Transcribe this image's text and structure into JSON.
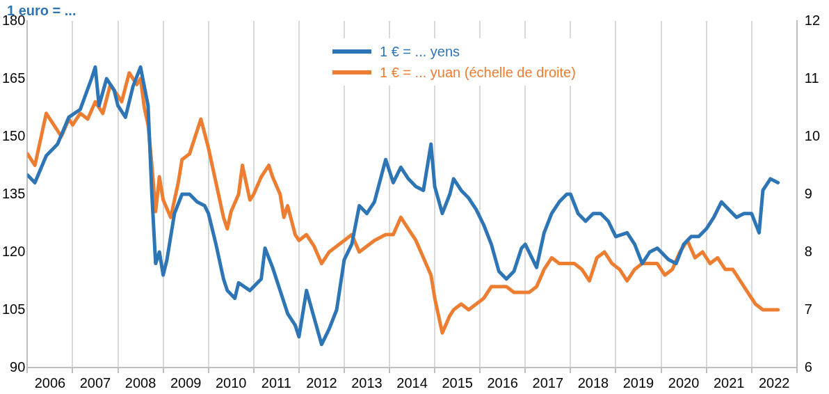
{
  "chart_data": {
    "type": "line",
    "title": "1 euro = ...",
    "xlim": [
      "2006-01-01",
      "2023-01-01"
    ],
    "xticks": [
      {
        "value": "2006-01-01",
        "label": null
      },
      {
        "value": "2006-07-01",
        "label": "2006"
      },
      {
        "value": "2007-01-01",
        "label": null
      },
      {
        "value": "2007-07-01",
        "label": "2007"
      },
      {
        "value": "2008-01-01",
        "label": null
      },
      {
        "value": "2008-07-01",
        "label": "2008"
      },
      {
        "value": "2009-01-01",
        "label": null
      },
      {
        "value": "2009-07-01",
        "label": "2009"
      },
      {
        "value": "2010-01-01",
        "label": null
      },
      {
        "value": "2010-07-01",
        "label": "2010"
      },
      {
        "value": "2011-01-01",
        "label": null
      },
      {
        "value": "2011-07-01",
        "label": "2011"
      },
      {
        "value": "2012-01-01",
        "label": null
      },
      {
        "value": "2012-07-01",
        "label": "2012"
      },
      {
        "value": "2013-01-01",
        "label": null
      },
      {
        "value": "2013-07-01",
        "label": "2013"
      },
      {
        "value": "2014-01-01",
        "label": null
      },
      {
        "value": "2014-07-01",
        "label": "2014"
      },
      {
        "value": "2015-01-01",
        "label": null
      },
      {
        "value": "2015-07-01",
        "label": "2015"
      },
      {
        "value": "2016-01-01",
        "label": null
      },
      {
        "value": "2016-07-01",
        "label": "2016"
      },
      {
        "value": "2017-01-01",
        "label": null
      },
      {
        "value": "2017-07-01",
        "label": "2017"
      },
      {
        "value": "2018-01-01",
        "label": null
      },
      {
        "value": "2018-07-01",
        "label": "2018"
      },
      {
        "value": "2019-01-01",
        "label": null
      },
      {
        "value": "2019-07-01",
        "label": "2019"
      },
      {
        "value": "2020-01-01",
        "label": null
      },
      {
        "value": "2020-07-01",
        "label": "2020"
      },
      {
        "value": "2021-01-01",
        "label": null
      },
      {
        "value": "2021-07-01",
        "label": "2021"
      },
      {
        "value": "2022-01-01",
        "label": null
      },
      {
        "value": "2022-07-01",
        "label": "2022"
      },
      {
        "value": "2023-01-01",
        "label": null
      }
    ],
    "ylim": [
      90,
      180
    ],
    "yticks": [
      90,
      105,
      120,
      135,
      150,
      165,
      180
    ],
    "y2lim": [
      6,
      12
    ],
    "y2ticks": [
      6,
      7,
      8,
      9,
      10,
      11,
      12
    ],
    "grid": "x",
    "legend": "top",
    "marker": "none",
    "line_style": "solid",
    "series": [
      {
        "name": "1 € = ... yens",
        "color": "#2e75b6",
        "x": [
          "2006-01",
          "2006-03",
          "2006-06",
          "2006-09",
          "2006-12",
          "2007-03",
          "2007-06",
          "2007-07",
          "2007-08",
          "2007-10",
          "2007-12",
          "2008-01",
          "2008-03",
          "2008-05",
          "2008-07",
          "2008-09",
          "2008-10",
          "2008-11",
          "2008-12",
          "2009-01",
          "2009-02",
          "2009-04",
          "2009-06",
          "2009-08",
          "2009-10",
          "2009-12",
          "2010-01",
          "2010-03",
          "2010-05",
          "2010-06",
          "2010-08",
          "2010-09",
          "2010-12",
          "2011-03",
          "2011-04",
          "2011-06",
          "2011-08",
          "2011-10",
          "2011-12",
          "2012-01",
          "2012-03",
          "2012-05",
          "2012-07",
          "2012-09",
          "2012-11",
          "2013-01",
          "2013-03",
          "2013-05",
          "2013-07",
          "2013-09",
          "2013-12",
          "2014-02",
          "2014-04",
          "2014-06",
          "2014-08",
          "2014-10",
          "2014-12",
          "2015-01",
          "2015-03",
          "2015-05",
          "2015-06",
          "2015-08",
          "2015-10",
          "2015-12",
          "2016-02",
          "2016-04",
          "2016-06",
          "2016-08",
          "2016-10",
          "2016-12",
          "2017-01",
          "2017-04",
          "2017-06",
          "2017-08",
          "2017-10",
          "2017-12",
          "2018-01",
          "2018-03",
          "2018-05",
          "2018-07",
          "2018-09",
          "2018-11",
          "2018-12",
          "2019-01",
          "2019-04",
          "2019-06",
          "2019-08",
          "2019-10",
          "2019-12",
          "2020-03",
          "2020-05",
          "2020-07",
          "2020-09",
          "2020-11",
          "2021-01",
          "2021-03",
          "2021-05",
          "2021-07",
          "2021-09",
          "2021-11",
          "2022-01",
          "2022-03",
          "2022-04",
          "2022-06",
          "2022-08"
        ],
        "values": [
          140,
          138,
          145,
          148,
          155,
          157,
          165,
          168,
          158,
          165,
          162,
          158,
          155,
          163,
          168,
          158,
          135,
          117,
          120,
          114,
          118,
          130,
          135,
          135,
          133,
          132,
          130,
          122,
          113,
          110,
          108,
          112,
          110,
          113,
          121,
          116,
          110,
          104,
          101,
          98,
          110,
          103,
          96,
          100,
          105,
          118,
          122,
          132,
          130,
          133,
          144,
          138,
          142,
          139,
          137,
          136,
          148,
          137,
          130,
          135,
          139,
          136,
          134,
          131,
          127,
          122,
          115,
          113,
          115,
          121,
          122,
          116,
          125,
          130,
          133,
          135,
          135,
          130,
          128,
          130,
          130,
          128,
          126,
          124,
          125,
          122,
          117,
          120,
          121,
          118,
          117,
          122,
          124,
          124,
          126,
          129,
          133,
          131,
          129,
          130,
          130,
          125,
          136,
          139,
          138
        ]
      },
      {
        "name": "1 € = ... yuan (échelle de droite)",
        "color": "#ed7d31",
        "axis": "y2",
        "x": [
          "2006-01",
          "2006-03",
          "2006-05",
          "2006-06",
          "2006-08",
          "2006-10",
          "2006-12",
          "2007-01",
          "2007-03",
          "2007-05",
          "2007-07",
          "2007-09",
          "2007-11",
          "2007-12",
          "2008-02",
          "2008-04",
          "2008-06",
          "2008-07",
          "2008-08",
          "2008-09",
          "2008-10",
          "2008-11",
          "2008-12",
          "2009-01",
          "2009-03",
          "2009-05",
          "2009-06",
          "2009-08",
          "2009-10",
          "2009-11",
          "2010-01",
          "2010-03",
          "2010-05",
          "2010-06",
          "2010-07",
          "2010-09",
          "2010-10",
          "2010-12",
          "2011-01",
          "2011-03",
          "2011-05",
          "2011-06",
          "2011-08",
          "2011-09",
          "2011-10",
          "2011-12",
          "2012-01",
          "2012-03",
          "2012-05",
          "2012-07",
          "2012-09",
          "2012-11",
          "2013-01",
          "2013-03",
          "2013-05",
          "2013-07",
          "2013-09",
          "2013-12",
          "2014-02",
          "2014-04",
          "2014-06",
          "2014-08",
          "2014-10",
          "2014-12",
          "2015-01",
          "2015-03",
          "2015-05",
          "2015-06",
          "2015-08",
          "2015-10",
          "2015-12",
          "2016-02",
          "2016-04",
          "2016-06",
          "2016-08",
          "2016-10",
          "2016-12",
          "2017-02",
          "2017-04",
          "2017-06",
          "2017-08",
          "2017-10",
          "2017-12",
          "2018-02",
          "2018-04",
          "2018-06",
          "2018-08",
          "2018-10",
          "2018-12",
          "2019-02",
          "2019-04",
          "2019-06",
          "2019-08",
          "2019-10",
          "2019-12",
          "2020-02",
          "2020-04",
          "2020-06",
          "2020-08",
          "2020-10",
          "2020-12",
          "2021-02",
          "2021-04",
          "2021-06",
          "2021-08",
          "2021-10",
          "2021-12",
          "2022-02",
          "2022-04",
          "2022-06",
          "2022-08"
        ],
        "values": [
          9.7,
          9.5,
          10.1,
          10.4,
          10.2,
          10.0,
          10.3,
          10.2,
          10.4,
          10.3,
          10.6,
          10.4,
          10.9,
          10.8,
          10.6,
          11.1,
          10.9,
          11.0,
          10.5,
          10.2,
          9.5,
          8.7,
          9.3,
          8.9,
          8.6,
          9.2,
          9.6,
          9.7,
          10.1,
          10.3,
          9.8,
          9.2,
          8.6,
          8.4,
          8.7,
          9.0,
          9.5,
          8.9,
          9.0,
          9.3,
          9.5,
          9.3,
          9.0,
          8.6,
          8.8,
          8.3,
          8.2,
          8.3,
          8.1,
          7.8,
          8.0,
          8.1,
          8.2,
          8.3,
          8.0,
          8.1,
          8.2,
          8.3,
          8.3,
          8.6,
          8.4,
          8.2,
          7.9,
          7.6,
          7.2,
          6.6,
          6.9,
          7.0,
          7.1,
          7.0,
          7.1,
          7.2,
          7.4,
          7.4,
          7.4,
          7.3,
          7.3,
          7.3,
          7.4,
          7.7,
          7.9,
          7.8,
          7.8,
          7.8,
          7.7,
          7.5,
          7.9,
          8.0,
          7.8,
          7.7,
          7.5,
          7.7,
          7.8,
          7.8,
          7.8,
          7.6,
          7.7,
          8.0,
          8.2,
          7.9,
          8.0,
          7.8,
          7.9,
          7.7,
          7.7,
          7.5,
          7.3,
          7.1,
          7.0,
          7.0,
          7.0
        ]
      }
    ]
  }
}
